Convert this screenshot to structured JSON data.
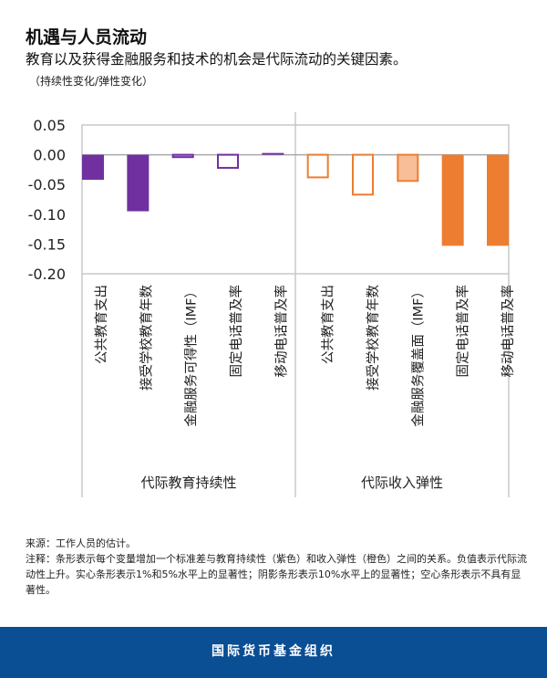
{
  "header": {
    "title": "机遇与人员流动",
    "subtitle": "教育以及获得金融服务和技术的机会是代际流动的关键因素。",
    "unit": "（持续性变化/弹性变化）"
  },
  "chart_data": {
    "type": "bar",
    "ylim": [
      -0.2,
      0.05
    ],
    "yticks": [
      "0.05",
      "0.00",
      "-0.05",
      "-0.10",
      "-0.15",
      "-0.20"
    ],
    "grid": false,
    "groups": [
      {
        "label": "代际教育持续性",
        "color": "#7030a0",
        "shade_color": "#c9b3df",
        "categories": [
          "公共教育支出",
          "接受学校教育年数",
          "金融服务可得性（IMF）",
          "固定电话普及率",
          "移动电话普及率"
        ],
        "values": [
          -0.042,
          -0.095,
          -0.004,
          -0.022,
          0.003
        ],
        "significance": [
          "solid",
          "solid",
          "shaded",
          "hollow",
          "solid"
        ]
      },
      {
        "label": "代际收入弹性",
        "color": "#ed7d31",
        "shade_color": "#f7be98",
        "categories": [
          "公共教育支出",
          "接受学校教育年数",
          "金融服务覆盖面（IMF）",
          "固定电话普及率",
          "移动电话普及率"
        ],
        "values": [
          -0.038,
          -0.067,
          -0.044,
          -0.153,
          -0.153
        ],
        "significance": [
          "hollow",
          "hollow",
          "shaded",
          "solid",
          "solid"
        ]
      }
    ]
  },
  "notes": {
    "source": "来源：工作人员的估计。",
    "note": "注释：条形表示每个变量增加一个标准差与教育持续性（紫色）和收入弹性（橙色）之间的关系。负值表示代际流动性上升。实心条形表示1%和5%水平上的显著性；阴影条形表示10%水平上的显著性；空心条形表示不具有显著性。"
  },
  "footer": {
    "org": "国际货币基金组织"
  }
}
